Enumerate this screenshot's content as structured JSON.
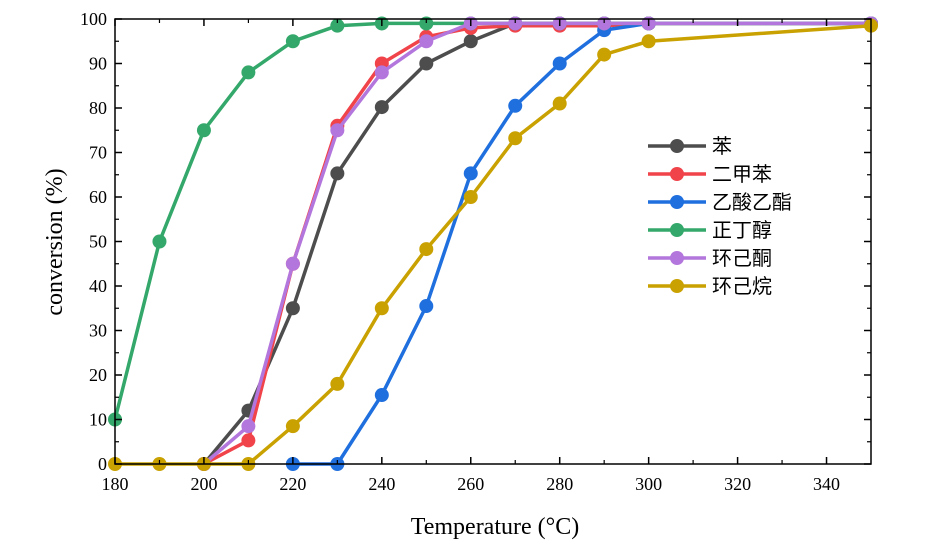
{
  "chart_data": {
    "type": "line",
    "xlabel": "Temperature (°C)",
    "ylabel": "conversion (%)",
    "xlim": [
      180,
      350
    ],
    "ylim": [
      0,
      100
    ],
    "xticks": [
      180,
      200,
      220,
      240,
      260,
      280,
      300,
      320,
      340
    ],
    "yticks": [
      0,
      10,
      20,
      30,
      40,
      50,
      60,
      70,
      80,
      90,
      100
    ],
    "grid": false,
    "legend_position": "right",
    "series": [
      {
        "name": "苯",
        "color": "#4d4d4d",
        "x": [
          200,
          210,
          220,
          230,
          240,
          250,
          260,
          270,
          280,
          290,
          300,
          350
        ],
        "y": [
          0,
          12,
          35,
          65.3,
          80.2,
          90,
          95,
          99,
          99,
          99,
          99,
          99
        ]
      },
      {
        "name": "二甲苯",
        "color": "#f0434a",
        "x": [
          200,
          210,
          220,
          230,
          240,
          250,
          260,
          270,
          280,
          290,
          300,
          350
        ],
        "y": [
          0,
          5.3,
          45,
          76,
          90,
          96,
          98,
          98.5,
          98.5,
          98.5,
          99,
          99
        ]
      },
      {
        "name": "乙酸乙酯",
        "color": "#1f6fde",
        "x": [
          220,
          230,
          240,
          250,
          260,
          270,
          280,
          290,
          300,
          350
        ],
        "y": [
          0,
          0,
          15.5,
          35.5,
          65.3,
          80.5,
          90,
          97.5,
          99,
          99
        ]
      },
      {
        "name": "正丁醇",
        "color": "#33a86a",
        "x": [
          180,
          190,
          200,
          210,
          220,
          230,
          240,
          250,
          260,
          270,
          280,
          290,
          300,
          350
        ],
        "y": [
          10,
          50,
          75,
          88,
          95,
          98.5,
          99,
          99,
          99,
          99,
          99,
          99,
          99,
          99
        ]
      },
      {
        "name": "环己酮",
        "color": "#b276dc",
        "x": [
          200,
          210,
          220,
          230,
          240,
          250,
          260,
          270,
          280,
          290,
          300,
          350
        ],
        "y": [
          0,
          8.5,
          45,
          75,
          88,
          95,
          99,
          99,
          99,
          99,
          99,
          99
        ]
      },
      {
        "name": "环己烷",
        "color": "#c9a100",
        "x": [
          180,
          190,
          200,
          210,
          220,
          230,
          240,
          250,
          260,
          270,
          280,
          290,
          300,
          350
        ],
        "y": [
          0,
          0,
          0,
          0,
          8.5,
          18,
          35,
          48.3,
          60,
          73.2,
          81,
          92,
          95,
          98.5
        ]
      }
    ]
  }
}
